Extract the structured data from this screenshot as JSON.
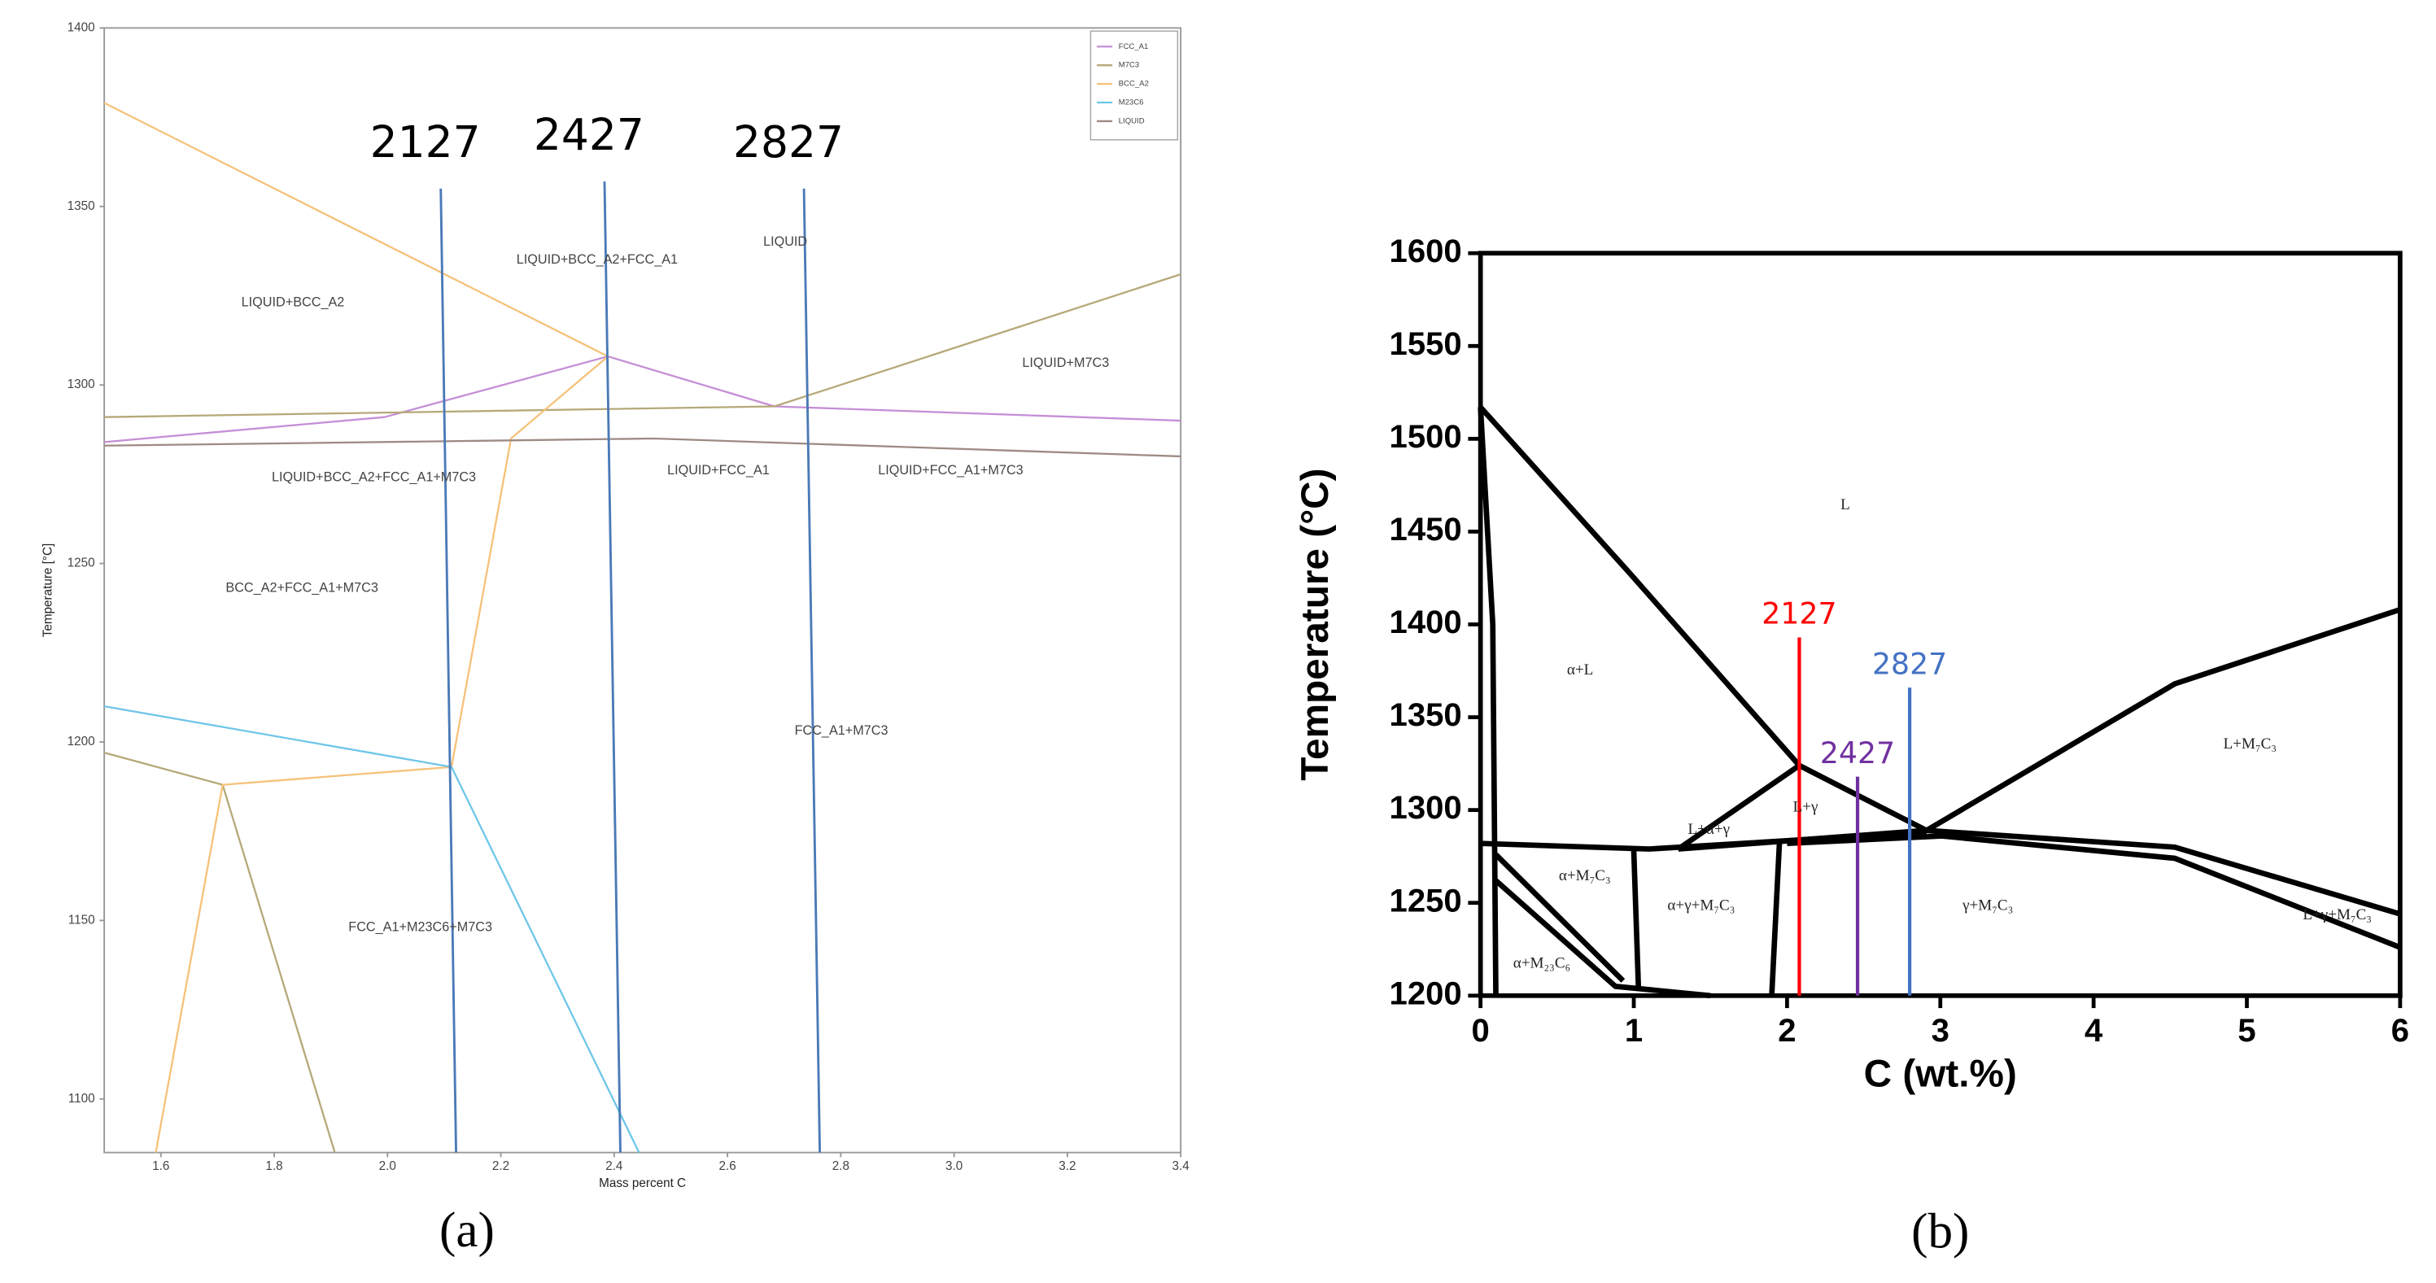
{
  "chart_data": [
    {
      "type": "line",
      "panel_label": "(a)",
      "xlabel": "Mass percent C",
      "ylabel": "Temperature [°C]",
      "xlim": [
        1.5,
        3.4
      ],
      "ylim": [
        1085,
        1400
      ],
      "xticks": [
        1.6,
        1.8,
        {
          "value": 2,
          "label": "2.0"
        },
        2.2,
        2.4,
        2.6,
        2.8,
        {
          "value": 3,
          "label": "3.0"
        },
        3.2,
        3.4
      ],
      "yticks": [
        1100,
        1150,
        1200,
        1250,
        1300,
        1350,
        1400
      ],
      "grid": false,
      "legend": "upper right",
      "series": [
        {
          "name": "FCC_A1",
          "color": "#c58fd6",
          "x": [
            1.5,
            1.995,
            2.389,
            2.683,
            3.4
          ],
          "values": [
            1284,
            1291,
            1308,
            1294,
            1290
          ]
        },
        {
          "name": "M7C3",
          "color": "#b5a979",
          "x": [
            1.5,
            2.683,
            3.4,
            3.4,
            1.5,
            1.709,
            1.907
          ],
          "values": [
            1291,
            1294,
            1331,
            null,
            1197,
            1188,
            1085
          ]
        },
        {
          "name": "BCC_A2",
          "color": "#f5c27a",
          "x": [
            1.5,
            2.389,
            2.218,
            2.113,
            1.709,
            1.591
          ],
          "values": [
            1379,
            1308,
            1285,
            1193,
            1188,
            1085
          ]
        },
        {
          "name": "M23C6",
          "color": "#6ec6e8",
          "x": [
            1.5,
            2.113,
            2.444
          ],
          "values": [
            1210,
            1193,
            1085
          ]
        },
        {
          "name": "LIQUID",
          "color": "#9e8a84",
          "x": [
            1.5,
            2.471,
            3.4
          ],
          "values": [
            1283,
            1285,
            1280
          ]
        }
      ],
      "composition_lines": [
        {
          "label": "2127",
          "color": "#4a7ab8",
          "label_color": "#000000",
          "x": [
            2.094,
            2.121
          ],
          "values": [
            1355,
            1085
          ]
        },
        {
          "label": "2427",
          "color": "#4a7ab8",
          "label_color": "#000000",
          "x": [
            2.383,
            2.411
          ],
          "values": [
            1357,
            1085
          ]
        },
        {
          "label": "2827",
          "color": "#4a7ab8",
          "label_color": "#000000",
          "x": [
            2.735,
            2.763
          ],
          "values": [
            1355,
            1085
          ]
        }
      ],
      "annotations": [
        {
          "text": "LIQUID+BCC_A2",
          "x": 1.833,
          "y": 1323
        },
        {
          "text": "LIQUID+BCC_A2+FCC_A1",
          "x": 2.37,
          "y": 1335
        },
        {
          "text": "LIQUID",
          "x": 2.702,
          "y": 1340
        },
        {
          "text": "LIQUID+M7C3",
          "x": 3.197,
          "y": 1306
        },
        {
          "text": "LIQUID+BCC_A2+FCC_A1+M7C3",
          "x": 1.976,
          "y": 1274
        },
        {
          "text": "LIQUID+FCC_A1",
          "x": 2.584,
          "y": 1276
        },
        {
          "text": "LIQUID+FCC_A1+M7C3",
          "x": 2.994,
          "y": 1276
        },
        {
          "text": "BCC_A2+FCC_A1+M7C3",
          "x": 1.849,
          "y": 1243
        },
        {
          "text": "FCC_A1+M7C3",
          "x": 2.801,
          "y": 1203
        },
        {
          "text": "FCC_A1+M23C6+M7C3",
          "x": 2.058,
          "y": 1148
        }
      ]
    },
    {
      "type": "line",
      "panel_label": "(b)",
      "xlabel": "C (wt.%)",
      "ylabel": "Temperature (°C)",
      "xlim": [
        0,
        6
      ],
      "ylim": [
        1200,
        1600
      ],
      "xticks": [
        0,
        1,
        2,
        3,
        4,
        5,
        6
      ],
      "yticks": [
        1200,
        1250,
        1300,
        1350,
        1400,
        1450,
        1500,
        1550,
        1600
      ],
      "grid": false,
      "series": [
        {
          "color": "#000000",
          "x": [
            0,
            0.98,
            2.08
          ],
          "values": [
            1517,
            1427,
            1324
          ]
        },
        {
          "color": "#000000",
          "x": [
            2.08,
            2.91
          ],
          "values": [
            1324,
            1289
          ]
        },
        {
          "color": "#000000",
          "x": [
            2.91,
            4.53,
            6
          ],
          "values": [
            1289,
            1368,
            1408
          ]
        },
        {
          "color": "#000000",
          "x": [
            0,
            1.1,
            2.91
          ],
          "values": [
            1282,
            1279,
            1288
          ]
        },
        {
          "color": "#000000",
          "x": [
            1.29,
            2.91,
            4.53,
            6
          ],
          "values": [
            1279,
            1289,
            1280,
            1244
          ]
        },
        {
          "color": "#000000",
          "x": [
            2,
            3.01,
            4.53,
            6
          ],
          "values": [
            1282,
            1286,
            1274,
            1226
          ]
        },
        {
          "color": "#000000",
          "x": [
            1.29,
            2.08
          ],
          "values": [
            1279,
            1324
          ]
        },
        {
          "color": "#000000",
          "x": [
            0,
            0.08,
            0.1
          ],
          "values": [
            1517,
            1400,
            1200
          ]
        },
        {
          "color": "#000000",
          "x": [
            0.1,
            0.93
          ],
          "values": [
            1276,
            1208
          ]
        },
        {
          "color": "#000000",
          "x": [
            0.1,
            0.88,
            1.5
          ],
          "values": [
            1262,
            1205,
            1200
          ]
        },
        {
          "color": "#000000",
          "x": [
            1,
            1.03
          ],
          "values": [
            1278,
            1205
          ]
        },
        {
          "color": "#000000",
          "x": [
            1.95,
            1.9
          ],
          "values": [
            1282,
            1200
          ]
        }
      ],
      "composition_lines": [
        {
          "label": "2127",
          "color": "#ff0000",
          "x": [
            2.08,
            2.08
          ],
          "values": [
            1393,
            1200
          ]
        },
        {
          "label": "2427",
          "color": "#7030a0",
          "x": [
            2.46,
            2.46
          ],
          "values": [
            1318,
            1200
          ]
        },
        {
          "label": "2827",
          "color": "#4472c4",
          "x": [
            2.8,
            2.8
          ],
          "values": [
            1366,
            1200
          ]
        }
      ],
      "annotations": [
        {
          "text": "L",
          "x": 2.38,
          "y": 1464
        },
        {
          "text": "α+L",
          "x": 0.65,
          "y": 1375
        },
        {
          "text": "L+M₇C₃",
          "x": 5.02,
          "y": 1335
        },
        {
          "text": "L+γ",
          "x": 2.12,
          "y": 1301
        },
        {
          "text": "L+α+γ",
          "x": 1.49,
          "y": 1289
        },
        {
          "text": "α+M₇C₃",
          "x": 0.68,
          "y": 1264
        },
        {
          "text": "α+γ+M₇C₃",
          "x": 1.44,
          "y": 1248
        },
        {
          "text": "γ+M₇C₃",
          "x": 3.31,
          "y": 1248
        },
        {
          "text": "L+γ+M₇C₃",
          "x": 5.59,
          "y": 1243
        },
        {
          "text": "α+M₂₃C₆",
          "x": 0.4,
          "y": 1217
        }
      ]
    }
  ]
}
